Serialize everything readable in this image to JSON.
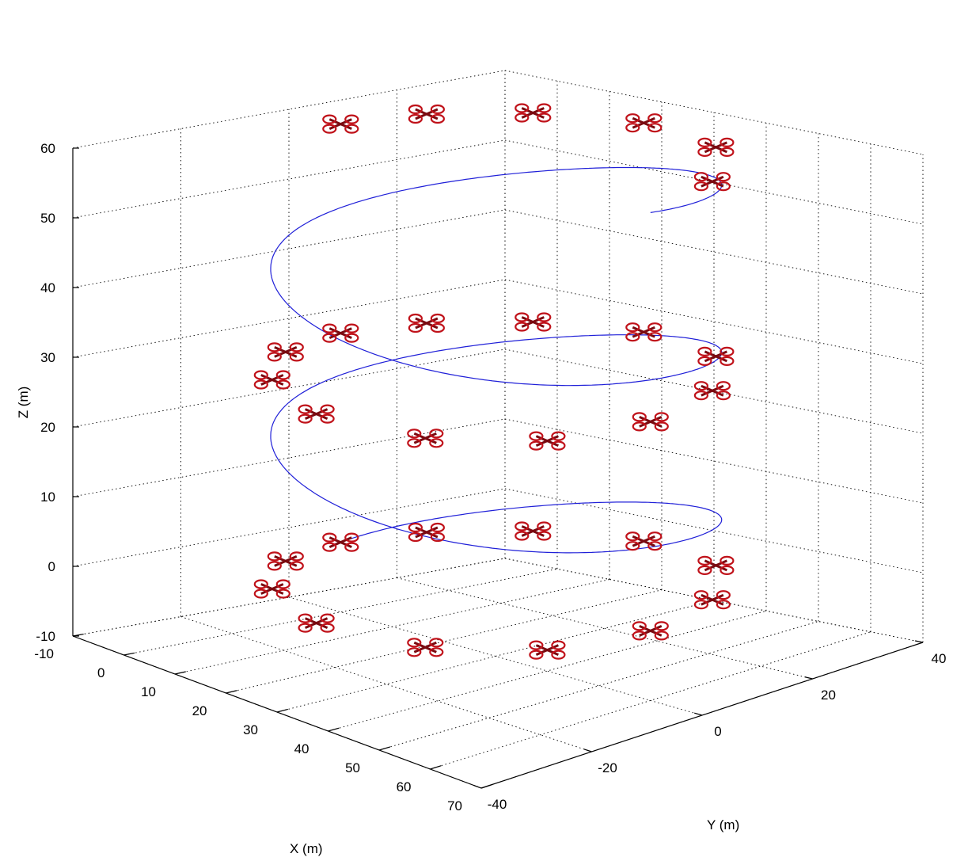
{
  "chart_data": {
    "type": "line3d",
    "title": "",
    "xlabel": "X (m)",
    "ylabel": "Y (m)",
    "zlabel": "Z (m)",
    "xlim": [
      -10,
      70
    ],
    "ylim": [
      -40,
      40
    ],
    "zlim": [
      -10,
      60
    ],
    "xticks": [
      -10,
      0,
      10,
      20,
      30,
      40,
      50,
      60,
      70
    ],
    "yticks": [
      -40,
      -20,
      0,
      20,
      40
    ],
    "zticks": [
      -10,
      0,
      10,
      20,
      30,
      40,
      50,
      60
    ],
    "grid": true,
    "trajectory": {
      "shape": "helix",
      "center": [
        30,
        0
      ],
      "radius": 30,
      "z_start": 0,
      "z_end": 60,
      "turns": 2.5,
      "color": "#1f1fd8"
    },
    "quadrotor_color": "#c0121a",
    "quadrotor_positions": [
      {
        "x": 0,
        "y": 0,
        "z": 0
      },
      {
        "x": 3,
        "y": 13,
        "z": 0
      },
      {
        "x": 12,
        "y": 24,
        "z": 0
      },
      {
        "x": 27,
        "y": 30,
        "z": 0
      },
      {
        "x": 44,
        "y": 27,
        "z": 0
      },
      {
        "x": 56,
        "y": 15,
        "z": 0
      },
      {
        "x": 60,
        "y": 0,
        "z": 0
      },
      {
        "x": 56,
        "y": -15,
        "z": 0
      },
      {
        "x": 44,
        "y": -26,
        "z": 0
      },
      {
        "x": 27,
        "y": -30,
        "z": 0
      },
      {
        "x": 12,
        "y": -24,
        "z": 0
      },
      {
        "x": 3,
        "y": -13,
        "z": 0
      },
      {
        "x": 0,
        "y": 0,
        "z": 30
      },
      {
        "x": 3,
        "y": 13,
        "z": 30
      },
      {
        "x": 12,
        "y": 24,
        "z": 30
      },
      {
        "x": 27,
        "y": 30,
        "z": 30
      },
      {
        "x": 44,
        "y": 27,
        "z": 30
      },
      {
        "x": 56,
        "y": 15,
        "z": 30
      },
      {
        "x": 60,
        "y": 0,
        "z": 30
      },
      {
        "x": 56,
        "y": -15,
        "z": 30
      },
      {
        "x": 44,
        "y": -26,
        "z": 30
      },
      {
        "x": 27,
        "y": -30,
        "z": 30
      },
      {
        "x": 12,
        "y": -24,
        "z": 30
      },
      {
        "x": 3,
        "y": -13,
        "z": 30
      },
      {
        "x": 0,
        "y": 0,
        "z": 60
      },
      {
        "x": 3,
        "y": 13,
        "z": 60
      },
      {
        "x": 12,
        "y": 24,
        "z": 60
      },
      {
        "x": 27,
        "y": 30,
        "z": 60
      },
      {
        "x": 44,
        "y": 27,
        "z": 60
      },
      {
        "x": 56,
        "y": 15,
        "z": 60
      }
    ]
  }
}
